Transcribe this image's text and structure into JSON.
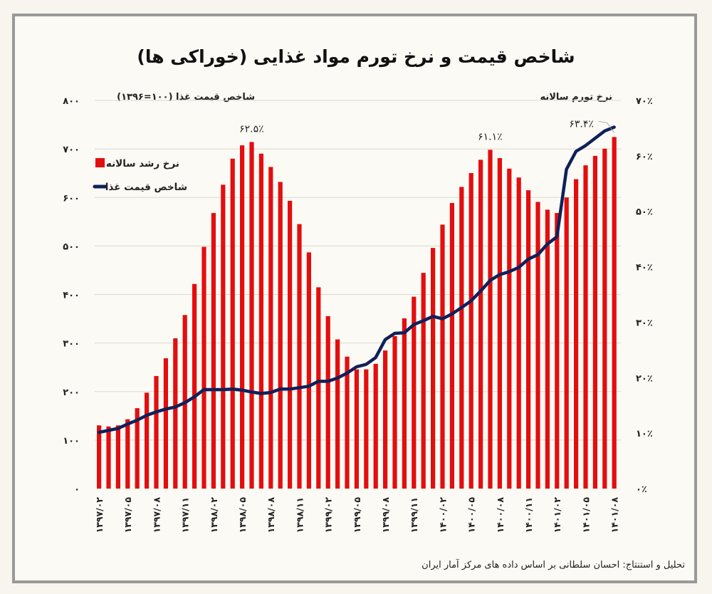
{
  "title": "شاخص قیمت و نرخ تورم مواد غذایی (خوراکی ها)",
  "footer": "تحلیل و استنتاج: احسان سلطانی بر اساس داده های مرکز آمار ایران",
  "chart_data": {
    "type": "bar+line",
    "title": "شاخص قیمت و نرخ تورم مواد غذایی (خوراکی ها)",
    "left_axis": {
      "label": "شاخص قیمت غذا (۱۰۰=۱۳۹۶)",
      "range": [
        0,
        800
      ],
      "ticks": [
        "۰",
        "۱۰۰",
        "۲۰۰",
        "۳۰۰",
        "۴۰۰",
        "۵۰۰",
        "۶۰۰",
        "۷۰۰",
        "۸۰۰"
      ]
    },
    "right_axis": {
      "label": "نرخ تورم سالانه",
      "range": [
        0,
        70
      ],
      "ticks": [
        "۰٪",
        "۱۰٪",
        "۲۰٪",
        "۳۰٪",
        "۴۰٪",
        "۵۰٪",
        "۶۰٪",
        "۷۰٪"
      ]
    },
    "grid": true,
    "legend_position": "top-left",
    "x_tick_labels": [
      "۱۳۹۷/۰۲",
      "۱۳۹۷/۰۵",
      "۱۳۹۷/۰۸",
      "۱۳۹۷/۱۱",
      "۱۳۹۸/۰۲",
      "۱۳۹۸/۰۵",
      "۱۳۹۸/۰۸",
      "۱۳۹۸/۱۱",
      "۱۳۹۹/۰۲",
      "۱۳۹۹/۰۵",
      "۱۳۹۹/۰۸",
      "۱۳۹۹/۱۱",
      "۱۴۰۰/۰۲",
      "۱۴۰۰/۰۵",
      "۱۴۰۰/۰۸",
      "۱۴۰۰/۱۱",
      "۱۴۰۱/۰۲",
      "۱۴۰۱/۰۵",
      "۱۴۰۱/۰۸"
    ],
    "x_range": [
      "1397/02",
      "1401/08"
    ],
    "series": [
      {
        "name": "نرخ رشد سالانه",
        "type": "bar",
        "axis": "right",
        "color": "#e30e0e",
        "values": [
          11.4,
          11.2,
          11.4,
          12.5,
          14.5,
          17.3,
          20.3,
          23.5,
          27.1,
          31.3,
          36.9,
          43.6,
          49.7,
          54.8,
          59.5,
          61.9,
          62.5,
          60.4,
          58.0,
          55.3,
          51.9,
          47.7,
          42.6,
          36.3,
          31.1,
          26.9,
          23.8,
          21.5,
          21.5,
          22.5,
          24.9,
          27.5,
          30.7,
          34.6,
          38.9,
          43.4,
          47.6,
          51.5,
          54.4,
          56.9,
          59.3,
          61.1,
          59.6,
          57.7,
          56.1,
          53.8,
          51.7,
          50.3,
          49.7,
          52.5,
          55.8,
          58.3,
          60.0,
          61.3,
          63.4
        ]
      },
      {
        "name": "شاخص قیمت غذا",
        "type": "line",
        "axis": "left",
        "color": "#10205a",
        "values": [
          116,
          120,
          124,
          133,
          141,
          151,
          158,
          164,
          168,
          177,
          189,
          204,
          204,
          204,
          205,
          203,
          199,
          196,
          198,
          205,
          205,
          208,
          211,
          221,
          221,
          228,
          238,
          251,
          256,
          270,
          307,
          320,
          321,
          338,
          346,
          355,
          350,
          360,
          373,
          387,
          407,
          429,
          441,
          447,
          456,
          473,
          482,
          504,
          519,
          658,
          695,
          707,
          722,
          737,
          745
        ]
      }
    ],
    "annotations": [
      {
        "text": "۶۲.۵٪",
        "index": 17
      },
      {
        "text": "۶۱.۱٪",
        "index": 42
      },
      {
        "text": "۶۳.۴٪",
        "index": 55
      }
    ]
  }
}
